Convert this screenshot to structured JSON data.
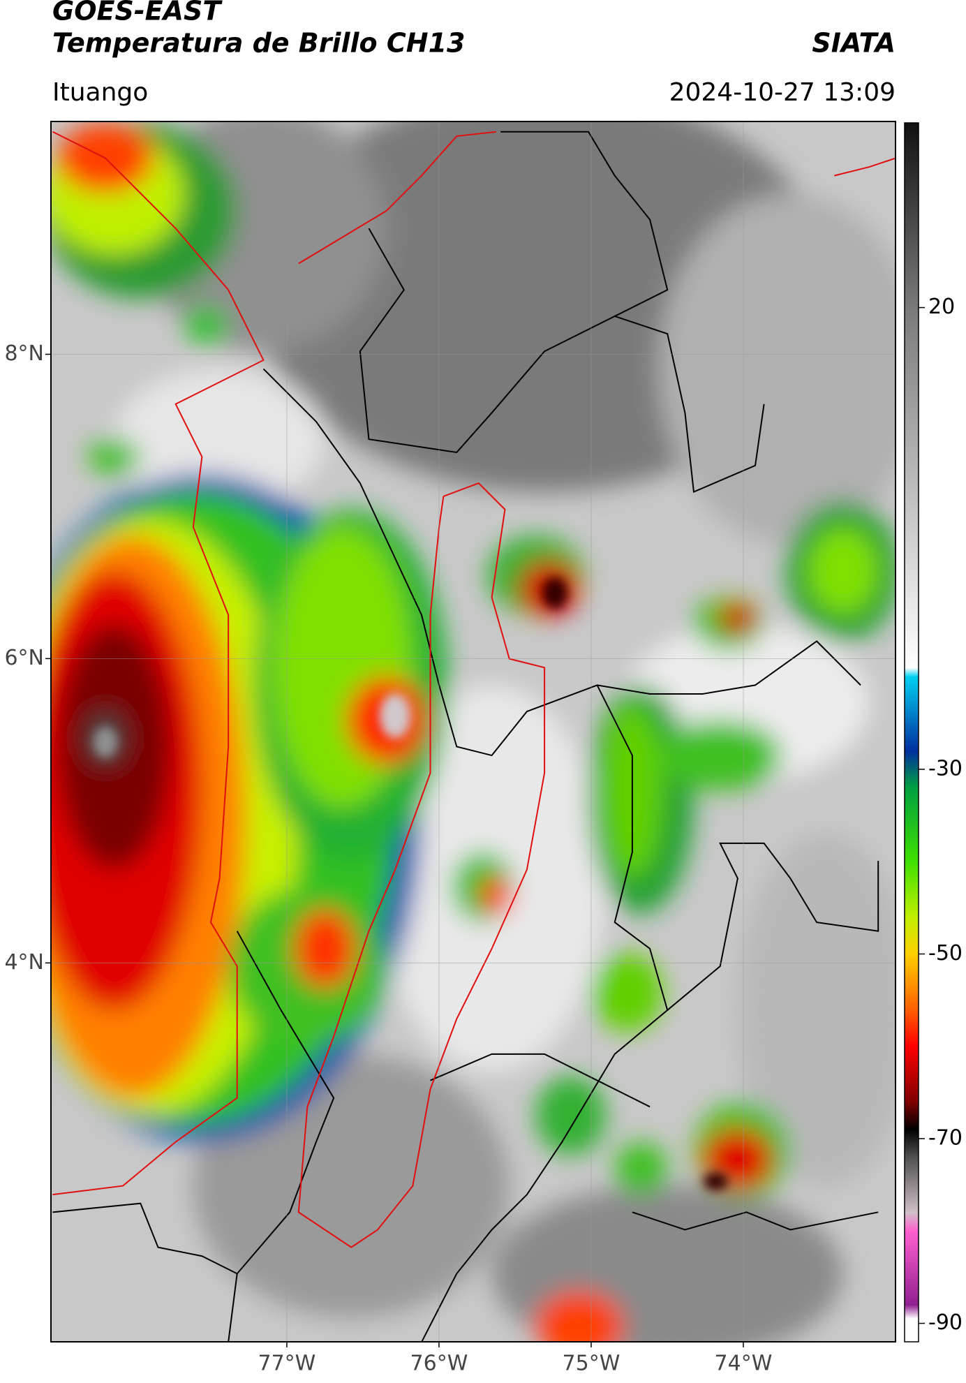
{
  "header": {
    "line1": "GOES-EAST",
    "line2": "Temperatura de Brillo CH13",
    "right": "SIATA",
    "location": "Ituango",
    "datetime": "2024-10-27 13:09"
  },
  "map": {
    "xlim": [
      -78.55,
      -73
    ],
    "ylim": [
      1.51,
      9.53
    ],
    "xticks": [
      {
        "value": -77,
        "label": "77°W"
      },
      {
        "value": -76,
        "label": "76°W"
      },
      {
        "value": -75,
        "label": "75°W"
      },
      {
        "value": -74,
        "label": "74°W"
      }
    ],
    "yticks": [
      {
        "value": 8,
        "label": "8°N"
      },
      {
        "value": 6,
        "label": "6°N"
      },
      {
        "value": 4,
        "label": "4°N"
      }
    ],
    "grid": true
  },
  "colorbar": {
    "lim": [
      -92,
      40
    ],
    "ticks": [
      20,
      -30,
      -50,
      -70,
      -90
    ],
    "stops": [
      {
        "value": 40,
        "color": "#111111"
      },
      {
        "value": 20,
        "color": "#7a7a7a"
      },
      {
        "value": -19,
        "color": "#ffffff"
      },
      {
        "value": -20,
        "color": "#00d0f0"
      },
      {
        "value": -28,
        "color": "#0030a0"
      },
      {
        "value": -32,
        "color": "#00a040"
      },
      {
        "value": -40,
        "color": "#40e000"
      },
      {
        "value": -46,
        "color": "#c0f000"
      },
      {
        "value": -50,
        "color": "#ffd000"
      },
      {
        "value": -56,
        "color": "#ff6000"
      },
      {
        "value": -60,
        "color": "#ff0000"
      },
      {
        "value": -66,
        "color": "#800000"
      },
      {
        "value": -69,
        "color": "#000000"
      },
      {
        "value": -72,
        "color": "#505050"
      },
      {
        "value": -78,
        "color": "#d0c0c8"
      },
      {
        "value": -80,
        "color": "#ff60d0"
      },
      {
        "value": -88,
        "color": "#902090"
      },
      {
        "value": -89.5,
        "color": "#ffffff"
      },
      {
        "value": -92,
        "color": "#ffffff"
      }
    ]
  }
}
